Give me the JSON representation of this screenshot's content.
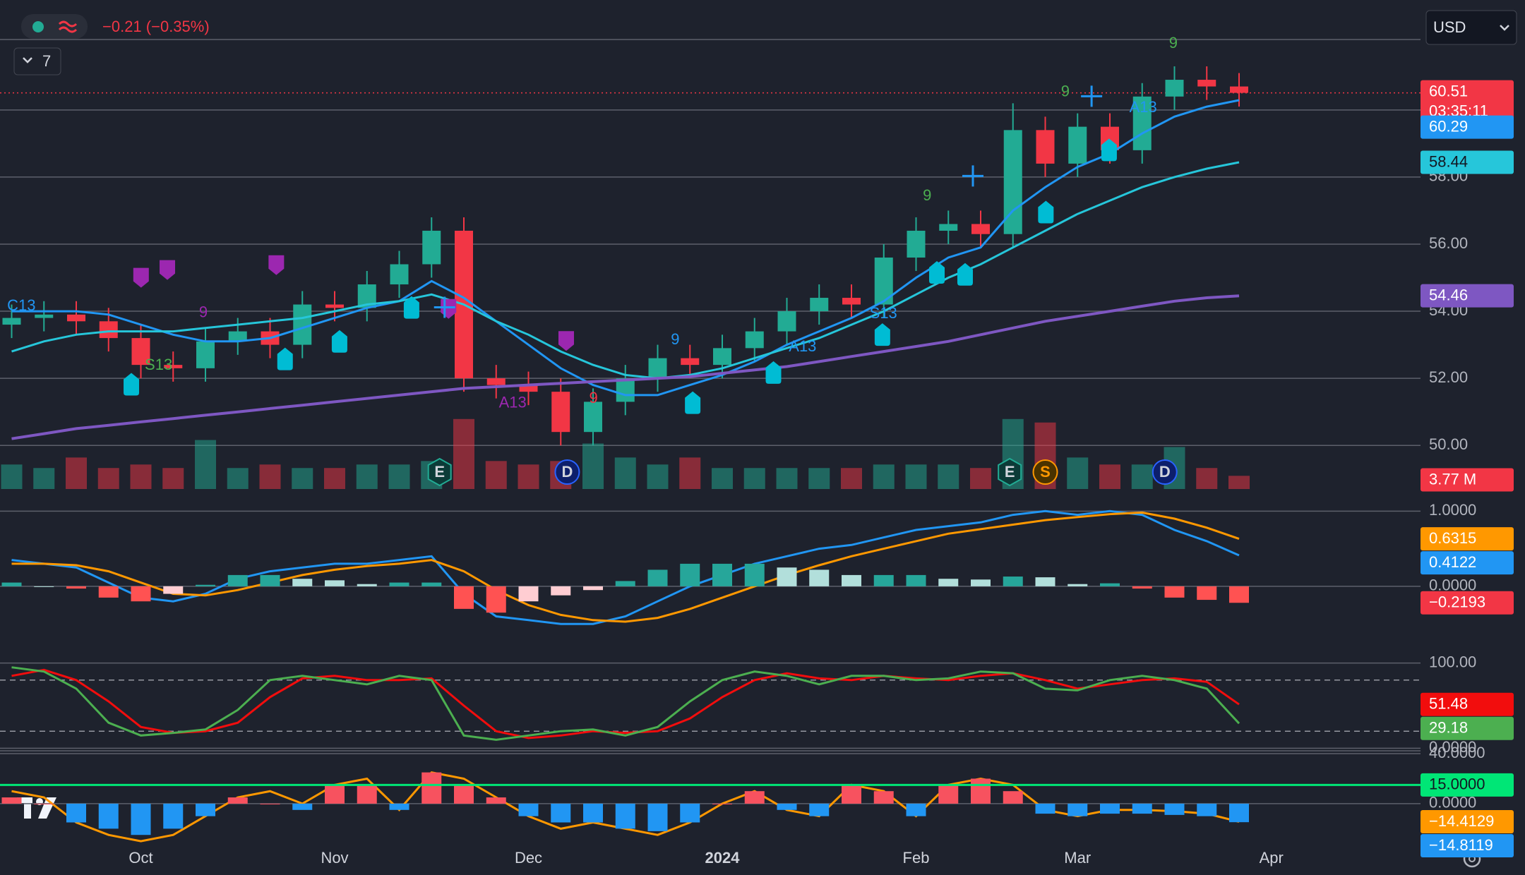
{
  "header": {
    "change": "−0.21 (−0.35%)",
    "indicators": "7",
    "currency": "USD"
  },
  "chart_data": [
    {
      "type": "candlestick",
      "categories": [
        null,
        null,
        null,
        null,
        "Oct",
        null,
        null,
        null,
        null,
        null,
        "Nov",
        null,
        null,
        null,
        null,
        null,
        "Dec",
        null,
        null,
        null,
        null,
        null,
        "2024",
        null,
        null,
        null,
        null,
        null,
        "Feb",
        null,
        null,
        null,
        null,
        "Mar",
        null,
        null,
        null,
        null,
        null,
        "Apr"
      ],
      "open": [
        53.6,
        53.8,
        53.9,
        53.7,
        53.2,
        52.4,
        52.3,
        53.1,
        53.4,
        53.0,
        54.2,
        54.1,
        54.8,
        55.4,
        56.4,
        52.0,
        51.8,
        51.6,
        50.4,
        51.3,
        52.0,
        52.6,
        52.4,
        52.9,
        53.4,
        54.0,
        54.4,
        54.2,
        55.6,
        56.4,
        56.6,
        56.3,
        59.4,
        58.4,
        59.5,
        58.8,
        60.4,
        60.9,
        60.7,
        null
      ],
      "high": [
        54.2,
        54.3,
        54.3,
        54.1,
        53.6,
        52.8,
        53.5,
        53.8,
        53.8,
        54.6,
        54.6,
        55.2,
        55.8,
        56.8,
        56.8,
        52.4,
        52.2,
        52.0,
        51.7,
        52.4,
        53.0,
        53.0,
        53.3,
        53.8,
        54.4,
        54.8,
        54.8,
        56.0,
        56.8,
        57.0,
        57.0,
        60.2,
        59.8,
        59.9,
        59.9,
        60.8,
        61.3,
        61.3,
        61.1,
        null
      ],
      "low": [
        53.2,
        53.4,
        53.3,
        52.8,
        52.0,
        51.9,
        51.9,
        52.7,
        52.6,
        52.6,
        53.7,
        53.7,
        54.4,
        55.0,
        51.6,
        51.4,
        51.2,
        50.0,
        50.0,
        50.9,
        51.6,
        52.0,
        52.0,
        52.5,
        53.0,
        53.6,
        53.8,
        53.8,
        55.2,
        56.0,
        55.9,
        55.9,
        58.0,
        58.0,
        58.4,
        58.4,
        60.0,
        60.3,
        60.1,
        null
      ],
      "close": [
        53.8,
        53.9,
        53.7,
        53.2,
        52.4,
        52.3,
        53.1,
        53.4,
        53.0,
        54.2,
        54.1,
        54.8,
        55.4,
        56.4,
        52.0,
        51.8,
        51.6,
        50.4,
        51.3,
        52.0,
        52.6,
        52.4,
        52.9,
        53.4,
        54.0,
        54.4,
        54.2,
        55.6,
        56.4,
        56.6,
        56.3,
        59.4,
        58.4,
        59.5,
        58.8,
        60.4,
        60.9,
        60.7,
        60.51,
        null
      ],
      "countdown": "03:35:11",
      "up_color": "#22ab94",
      "down_color": "#f23645",
      "series": [
        {
          "color": "#2196f3",
          "values": [
            54.0,
            54.0,
            54.0,
            53.9,
            53.6,
            53.3,
            53.1,
            53.1,
            53.2,
            53.5,
            53.8,
            54.1,
            54.3,
            54.9,
            54.4,
            53.7,
            53.0,
            52.3,
            51.8,
            51.5,
            51.5,
            51.8,
            52.1,
            52.5,
            53.0,
            53.4,
            53.8,
            54.3,
            55.0,
            55.6,
            55.9,
            57.0,
            57.7,
            58.3,
            58.7,
            59.3,
            59.8,
            60.1,
            60.29,
            null
          ]
        },
        {
          "color": "#26c6da",
          "values": [
            52.8,
            53.1,
            53.3,
            53.4,
            53.4,
            53.4,
            53.5,
            53.6,
            53.7,
            53.8,
            54.0,
            54.2,
            54.3,
            54.5,
            54.2,
            53.7,
            53.3,
            52.8,
            52.4,
            52.1,
            52.0,
            52.1,
            52.3,
            52.6,
            52.9,
            53.2,
            53.6,
            54.0,
            54.5,
            55.0,
            55.4,
            55.9,
            56.4,
            56.9,
            57.3,
            57.7,
            58.0,
            58.25,
            58.44,
            null
          ]
        },
        {
          "color": "#7e57c2",
          "values": [
            50.2,
            50.35,
            50.5,
            50.6,
            50.7,
            50.8,
            50.9,
            51.0,
            51.1,
            51.2,
            51.3,
            51.4,
            51.5,
            51.6,
            51.7,
            51.75,
            51.8,
            51.85,
            51.9,
            51.95,
            52.0,
            52.05,
            52.15,
            52.25,
            52.35,
            52.5,
            52.65,
            52.8,
            52.95,
            53.1,
            53.3,
            53.5,
            53.7,
            53.85,
            54.0,
            54.15,
            54.3,
            54.4,
            54.46,
            null
          ]
        }
      ],
      "ylim": [
        48.7,
        62.1
      ],
      "yticks": [
        {
          "value": 50,
          "label": "50.00"
        },
        {
          "value": 52,
          "label": "52.00"
        },
        {
          "value": 54,
          "label": "54.00"
        },
        {
          "value": 56,
          "label": "56.00"
        },
        {
          "value": 58,
          "label": "58.00"
        },
        {
          "value": 60,
          "label": "60.00"
        }
      ],
      "grid": true,
      "events": [
        "E",
        "D",
        "E",
        "S",
        "D"
      ],
      "td_labels": [
        "C13",
        "S13",
        "9",
        "A13",
        "9",
        "9",
        "A13",
        "S13",
        "9",
        "9",
        "A13",
        "9"
      ]
    },
    {
      "type": "bar",
      "values": [
        7,
        6,
        9,
        6,
        7,
        6,
        14,
        6,
        7,
        6,
        6,
        7,
        7,
        8,
        20,
        8,
        7,
        8,
        13,
        9,
        7,
        9,
        6,
        6,
        6,
        6,
        6,
        7,
        7,
        7,
        6,
        20,
        19,
        9,
        7,
        7,
        12,
        6,
        3.77,
        null
      ],
      "value_labels": [
        null,
        null,
        null,
        null,
        null,
        null,
        null,
        null,
        null,
        null,
        null,
        null,
        null,
        null,
        null,
        null,
        null,
        null,
        null,
        null,
        null,
        null,
        null,
        null,
        null,
        null,
        null,
        null,
        null,
        null,
        null,
        null,
        null,
        null,
        null,
        null,
        null,
        null,
        "3.77 M",
        null
      ],
      "ylim": [
        0,
        25
      ]
    },
    {
      "type": "line",
      "series": [
        {
          "color": "#2196f3",
          "values": [
            0.35,
            0.3,
            0.25,
            0.05,
            -0.15,
            -0.2,
            -0.1,
            0.1,
            0.2,
            0.25,
            0.3,
            0.3,
            0.35,
            0.4,
            -0.1,
            -0.4,
            -0.45,
            -0.5,
            -0.5,
            -0.4,
            -0.2,
            0,
            0.15,
            0.3,
            0.4,
            0.5,
            0.55,
            0.65,
            0.75,
            0.8,
            0.85,
            0.95,
            1.0,
            0.95,
            1.0,
            0.95,
            0.75,
            0.6,
            0.4122,
            null
          ]
        },
        {
          "color": "#ff9800",
          "values": [
            0.3,
            0.3,
            0.28,
            0.2,
            0.05,
            -0.1,
            -0.12,
            -0.05,
            0.05,
            0.15,
            0.22,
            0.27,
            0.3,
            0.35,
            0.2,
            -0.05,
            -0.25,
            -0.38,
            -0.45,
            -0.47,
            -0.42,
            -0.3,
            -0.15,
            0,
            0.15,
            0.28,
            0.4,
            0.5,
            0.6,
            0.7,
            0.76,
            0.82,
            0.88,
            0.92,
            0.96,
            0.98,
            0.9,
            0.78,
            0.6315,
            null
          ]
        },
        {
          "style": "histogram",
          "color": "#f23645",
          "values": [
            0.05,
            0,
            -0.03,
            -0.15,
            -0.2,
            -0.1,
            0.02,
            0.15,
            0.15,
            0.1,
            0.08,
            0.03,
            0.05,
            0.05,
            -0.3,
            -0.35,
            -0.2,
            -0.12,
            -0.05,
            0.07,
            0.22,
            0.3,
            0.3,
            0.3,
            0.25,
            0.22,
            0.15,
            0.15,
            0.15,
            0.1,
            0.09,
            0.13,
            0.12,
            0.03,
            0.04,
            -0.03,
            -0.15,
            -0.18,
            -0.2193,
            null
          ],
          "value_labels": [
            null,
            null,
            null,
            null,
            null,
            null,
            null,
            null,
            null,
            null,
            null,
            null,
            null,
            null,
            null,
            null,
            null,
            null,
            null,
            null,
            null,
            null,
            null,
            null,
            null,
            null,
            null,
            null,
            null,
            null,
            null,
            null,
            null,
            null,
            null,
            null,
            null,
            null,
            "−0.2193",
            null
          ]
        }
      ],
      "ylim": [
        -0.93,
        1.2
      ],
      "yticks": [
        {
          "value": 1,
          "label": "1.0000"
        },
        {
          "value": 0,
          "label": "0.0000"
        }
      ]
    },
    {
      "type": "line",
      "series": [
        {
          "color": "#f20d0d",
          "values": [
            85,
            92,
            80,
            55,
            25,
            18,
            20,
            30,
            60,
            82,
            85,
            80,
            80,
            82,
            50,
            20,
            12,
            15,
            20,
            18,
            20,
            35,
            60,
            80,
            88,
            82,
            80,
            85,
            82,
            80,
            85,
            88,
            80,
            70,
            75,
            80,
            82,
            78,
            51.48,
            null
          ]
        },
        {
          "color": "#4caf50",
          "values": [
            95,
            90,
            70,
            30,
            15,
            18,
            22,
            45,
            80,
            85,
            80,
            75,
            85,
            80,
            15,
            10,
            15,
            20,
            22,
            15,
            25,
            55,
            80,
            90,
            85,
            75,
            85,
            85,
            80,
            82,
            90,
            88,
            70,
            68,
            80,
            85,
            80,
            70,
            29.18,
            null
          ]
        }
      ],
      "bands": [
        80,
        20
      ],
      "ylim": [
        -3,
        108
      ],
      "yticks": [
        {
          "value": 100,
          "label": "100.00"
        },
        {
          "value": 0,
          "label": "0.0000"
        }
      ]
    },
    {
      "type": "line",
      "series": [
        {
          "color": "#ff9800",
          "values": [
            10,
            5,
            -15,
            -25,
            -30,
            -25,
            -10,
            5,
            10,
            0,
            15,
            20,
            -5,
            25,
            20,
            5,
            -10,
            -20,
            -15,
            -20,
            -25,
            -15,
            0,
            10,
            -5,
            -10,
            15,
            10,
            -10,
            15,
            20,
            15,
            -5,
            -10,
            -5,
            -5,
            -6,
            -8,
            -14.4129,
            null
          ],
          "value_labels": [
            null,
            null,
            null,
            null,
            null,
            null,
            null,
            null,
            null,
            null,
            null,
            null,
            null,
            null,
            null,
            null,
            null,
            null,
            null,
            null,
            null,
            null,
            null,
            null,
            null,
            null,
            null,
            null,
            null,
            null,
            null,
            null,
            null,
            null,
            null,
            null,
            null,
            null,
            "−14.4129",
            null
          ]
        },
        {
          "style": "histogram",
          "color": "#2196f3",
          "values": [
            5,
            0,
            -15,
            -20,
            -25,
            -20,
            -10,
            5,
            0,
            -5,
            15,
            15,
            -5,
            25,
            15,
            5,
            -10,
            -15,
            -15,
            -20,
            -22,
            -15,
            0,
            10,
            -5,
            -10,
            15,
            10,
            -10,
            15,
            20,
            10,
            -8,
            -10,
            -8,
            -8,
            -9,
            -10,
            -14.8119,
            null
          ],
          "value_labels": [
            null,
            null,
            null,
            null,
            null,
            null,
            null,
            null,
            null,
            null,
            null,
            null,
            null,
            null,
            null,
            null,
            null,
            null,
            null,
            null,
            null,
            null,
            null,
            null,
            null,
            null,
            null,
            null,
            null,
            null,
            null,
            null,
            null,
            null,
            null,
            null,
            null,
            null,
            "−14.8119",
            null
          ]
        }
      ],
      "hlines": [
        {
          "value": 15,
          "label": "15.0000",
          "color": "#00e676"
        }
      ],
      "ylim": [
        -26,
        40
      ],
      "yticks": [
        {
          "value": 40,
          "label": "40.0000"
        },
        {
          "value": 0,
          "label": "0.0000"
        }
      ]
    }
  ]
}
